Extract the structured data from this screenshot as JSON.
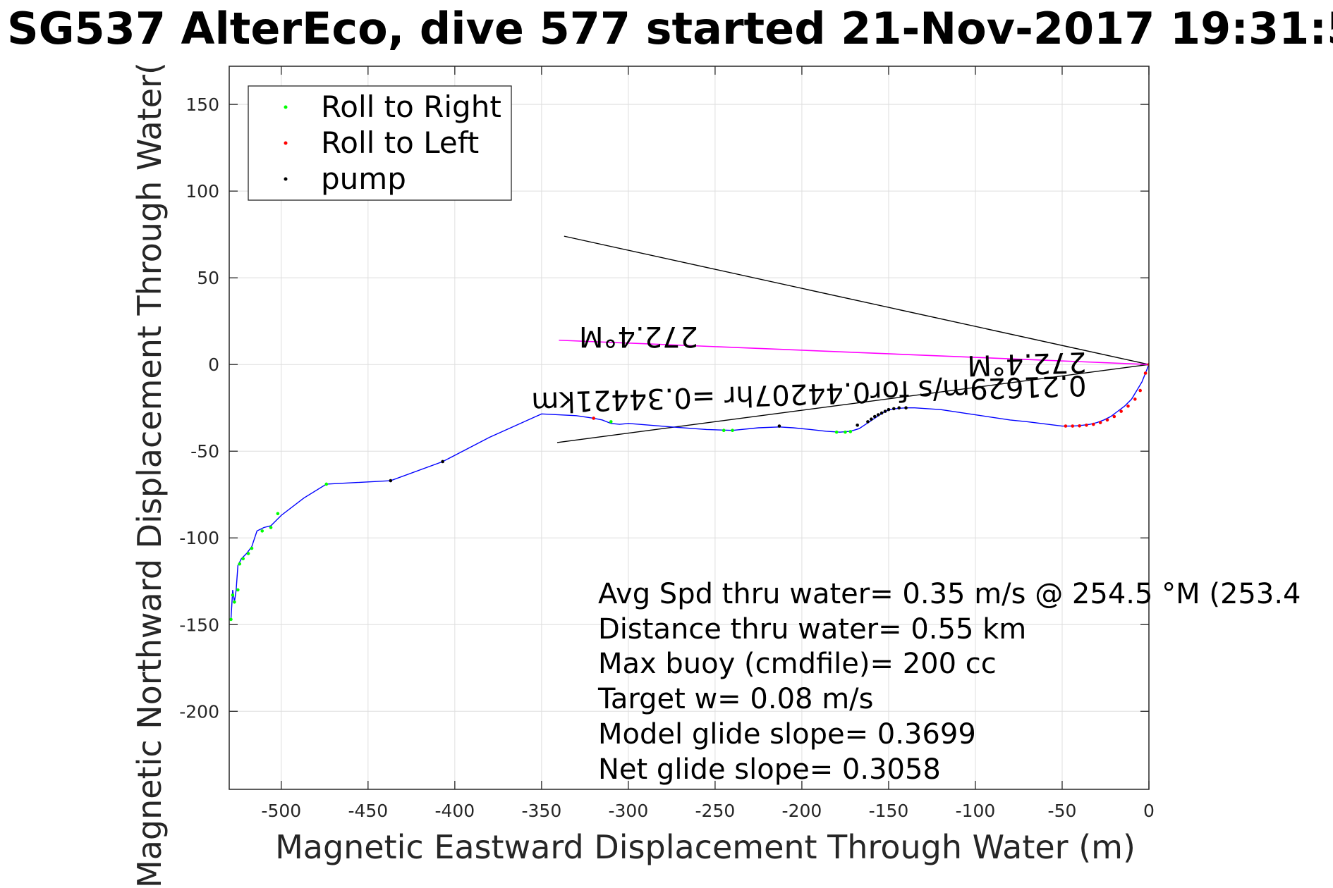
{
  "chart_data": {
    "type": "line",
    "title": "SG537 AlterEco, dive 577 started 21-Nov-2017 19:31:5",
    "xlabel": "Magnetic Eastward Displacement Through Water (m)",
    "ylabel": "Magnetic Northward Displacement Through Water(",
    "xlim": [
      -530,
      0
    ],
    "ylim": [
      -245,
      172
    ],
    "xticks": [
      -500,
      -450,
      -400,
      -350,
      -300,
      -250,
      -200,
      -150,
      -100,
      -50,
      0
    ],
    "yticks": [
      150,
      100,
      50,
      0,
      -50,
      -100,
      -150,
      -200
    ],
    "grid": true,
    "legend_position": "top-left",
    "legend": [
      {
        "label": "Roll to Right",
        "color": "#00ff00"
      },
      {
        "label": "Roll to Left",
        "color": "#ff0000"
      },
      {
        "label": "pump",
        "color": "#000000"
      }
    ],
    "series": [
      {
        "color": "#0000ff",
        "x": [
          0,
          -2,
          -4,
          -7,
          -10,
          -14,
          -18,
          -22,
          -26,
          -30,
          -34,
          -38,
          -42,
          -46,
          -50,
          -70,
          -80,
          -100,
          -120,
          -135,
          -140,
          -143,
          -146,
          -149,
          -152,
          -155,
          -158,
          -161,
          -164,
          -167,
          -172,
          -178,
          -186,
          -195,
          -205,
          -213,
          -225,
          -240,
          -255,
          -275,
          -300,
          -305,
          -310,
          -315,
          -320,
          -330,
          -340,
          -350,
          -380,
          -407,
          -437,
          -474,
          -487,
          -500,
          -506,
          -510,
          -514,
          -517,
          -520,
          -523,
          -525,
          -526,
          -527,
          -528,
          -529
        ],
        "y": [
          0,
          -5,
          -10,
          -15,
          -20,
          -24,
          -27,
          -30,
          -32,
          -33.5,
          -34.5,
          -35,
          -35.4,
          -35.5,
          -35.5,
          -33,
          -32,
          -29,
          -26,
          -25,
          -25,
          -25.2,
          -25.5,
          -26,
          -27,
          -29,
          -31,
          -33,
          -35,
          -37,
          -38.5,
          -39,
          -38.5,
          -37.5,
          -36.5,
          -36,
          -36.5,
          -38,
          -37.5,
          -36,
          -34,
          -34.5,
          -34,
          -32,
          -31,
          -29.5,
          -29,
          -28.5,
          -42,
          -56,
          -67,
          -69,
          -77,
          -87,
          -93,
          -94,
          -96,
          -105,
          -109,
          -112,
          -116,
          -130,
          -137,
          -130,
          -147
        ]
      }
    ],
    "markers": {
      "roll_right": {
        "color": "#00ff00",
        "x": [
          -310,
          -245,
          -240,
          -180,
          -175,
          -172,
          -474,
          -502,
          -506,
          -511,
          -517,
          -519,
          -522,
          -524,
          -525,
          -527,
          -528,
          -529
        ],
        "y": [
          -33,
          -38,
          -38,
          -39,
          -39,
          -38.7,
          -69,
          -86,
          -94,
          -96,
          -106,
          -109,
          -112,
          -115,
          -130,
          -137,
          -133,
          -147
        ]
      },
      "roll_left": {
        "color": "#ff0000",
        "x": [
          -320,
          -48,
          -44,
          -40,
          -36,
          -32,
          -28,
          -24,
          -20,
          -16,
          -12,
          -8,
          -5,
          -2,
          0
        ],
        "y": [
          -31,
          -35.5,
          -35.5,
          -35.4,
          -35,
          -34.5,
          -33.5,
          -32,
          -30,
          -27,
          -24,
          -20,
          -15,
          -5,
          0
        ]
      },
      "pump": {
        "color": "#000000",
        "x": [
          -437,
          -407,
          -213,
          -168,
          -162,
          -160,
          -158,
          -156,
          -154,
          -152,
          -150,
          -147,
          -144,
          -140
        ],
        "y": [
          -67,
          -56,
          -35.5,
          -35,
          -33,
          -31.5,
          -30,
          -29,
          -28,
          -27,
          -26,
          -25.5,
          -25,
          -25
        ]
      }
    },
    "magenta_line": {
      "color": "#ff00ff",
      "x": [
        -340,
        0
      ],
      "y": [
        14,
        0
      ]
    },
    "cone_lines": [
      {
        "color": "#000000",
        "x": [
          -337,
          0
        ],
        "y": [
          74,
          0
        ]
      },
      {
        "color": "#000000",
        "x": [
          -341,
          0
        ],
        "y": [
          -45,
          0
        ]
      }
    ],
    "annotations": {
      "upside_text_1": "272.4°M",
      "upside_text_2": "0.21629m/s for0.44207hr =0.34421km",
      "upside_text_3": "272.4°M"
    },
    "stats": [
      "Avg Spd thru water=  0.35 m/s @ 254.5 °M (253.4",
      "Distance thru water=  0.55 km",
      "Max buoy (cmdfile)= 200 cc",
      "Target w= 0.08 m/s",
      "Model glide slope= 0.3699",
      "Net glide slope= 0.3058"
    ]
  }
}
